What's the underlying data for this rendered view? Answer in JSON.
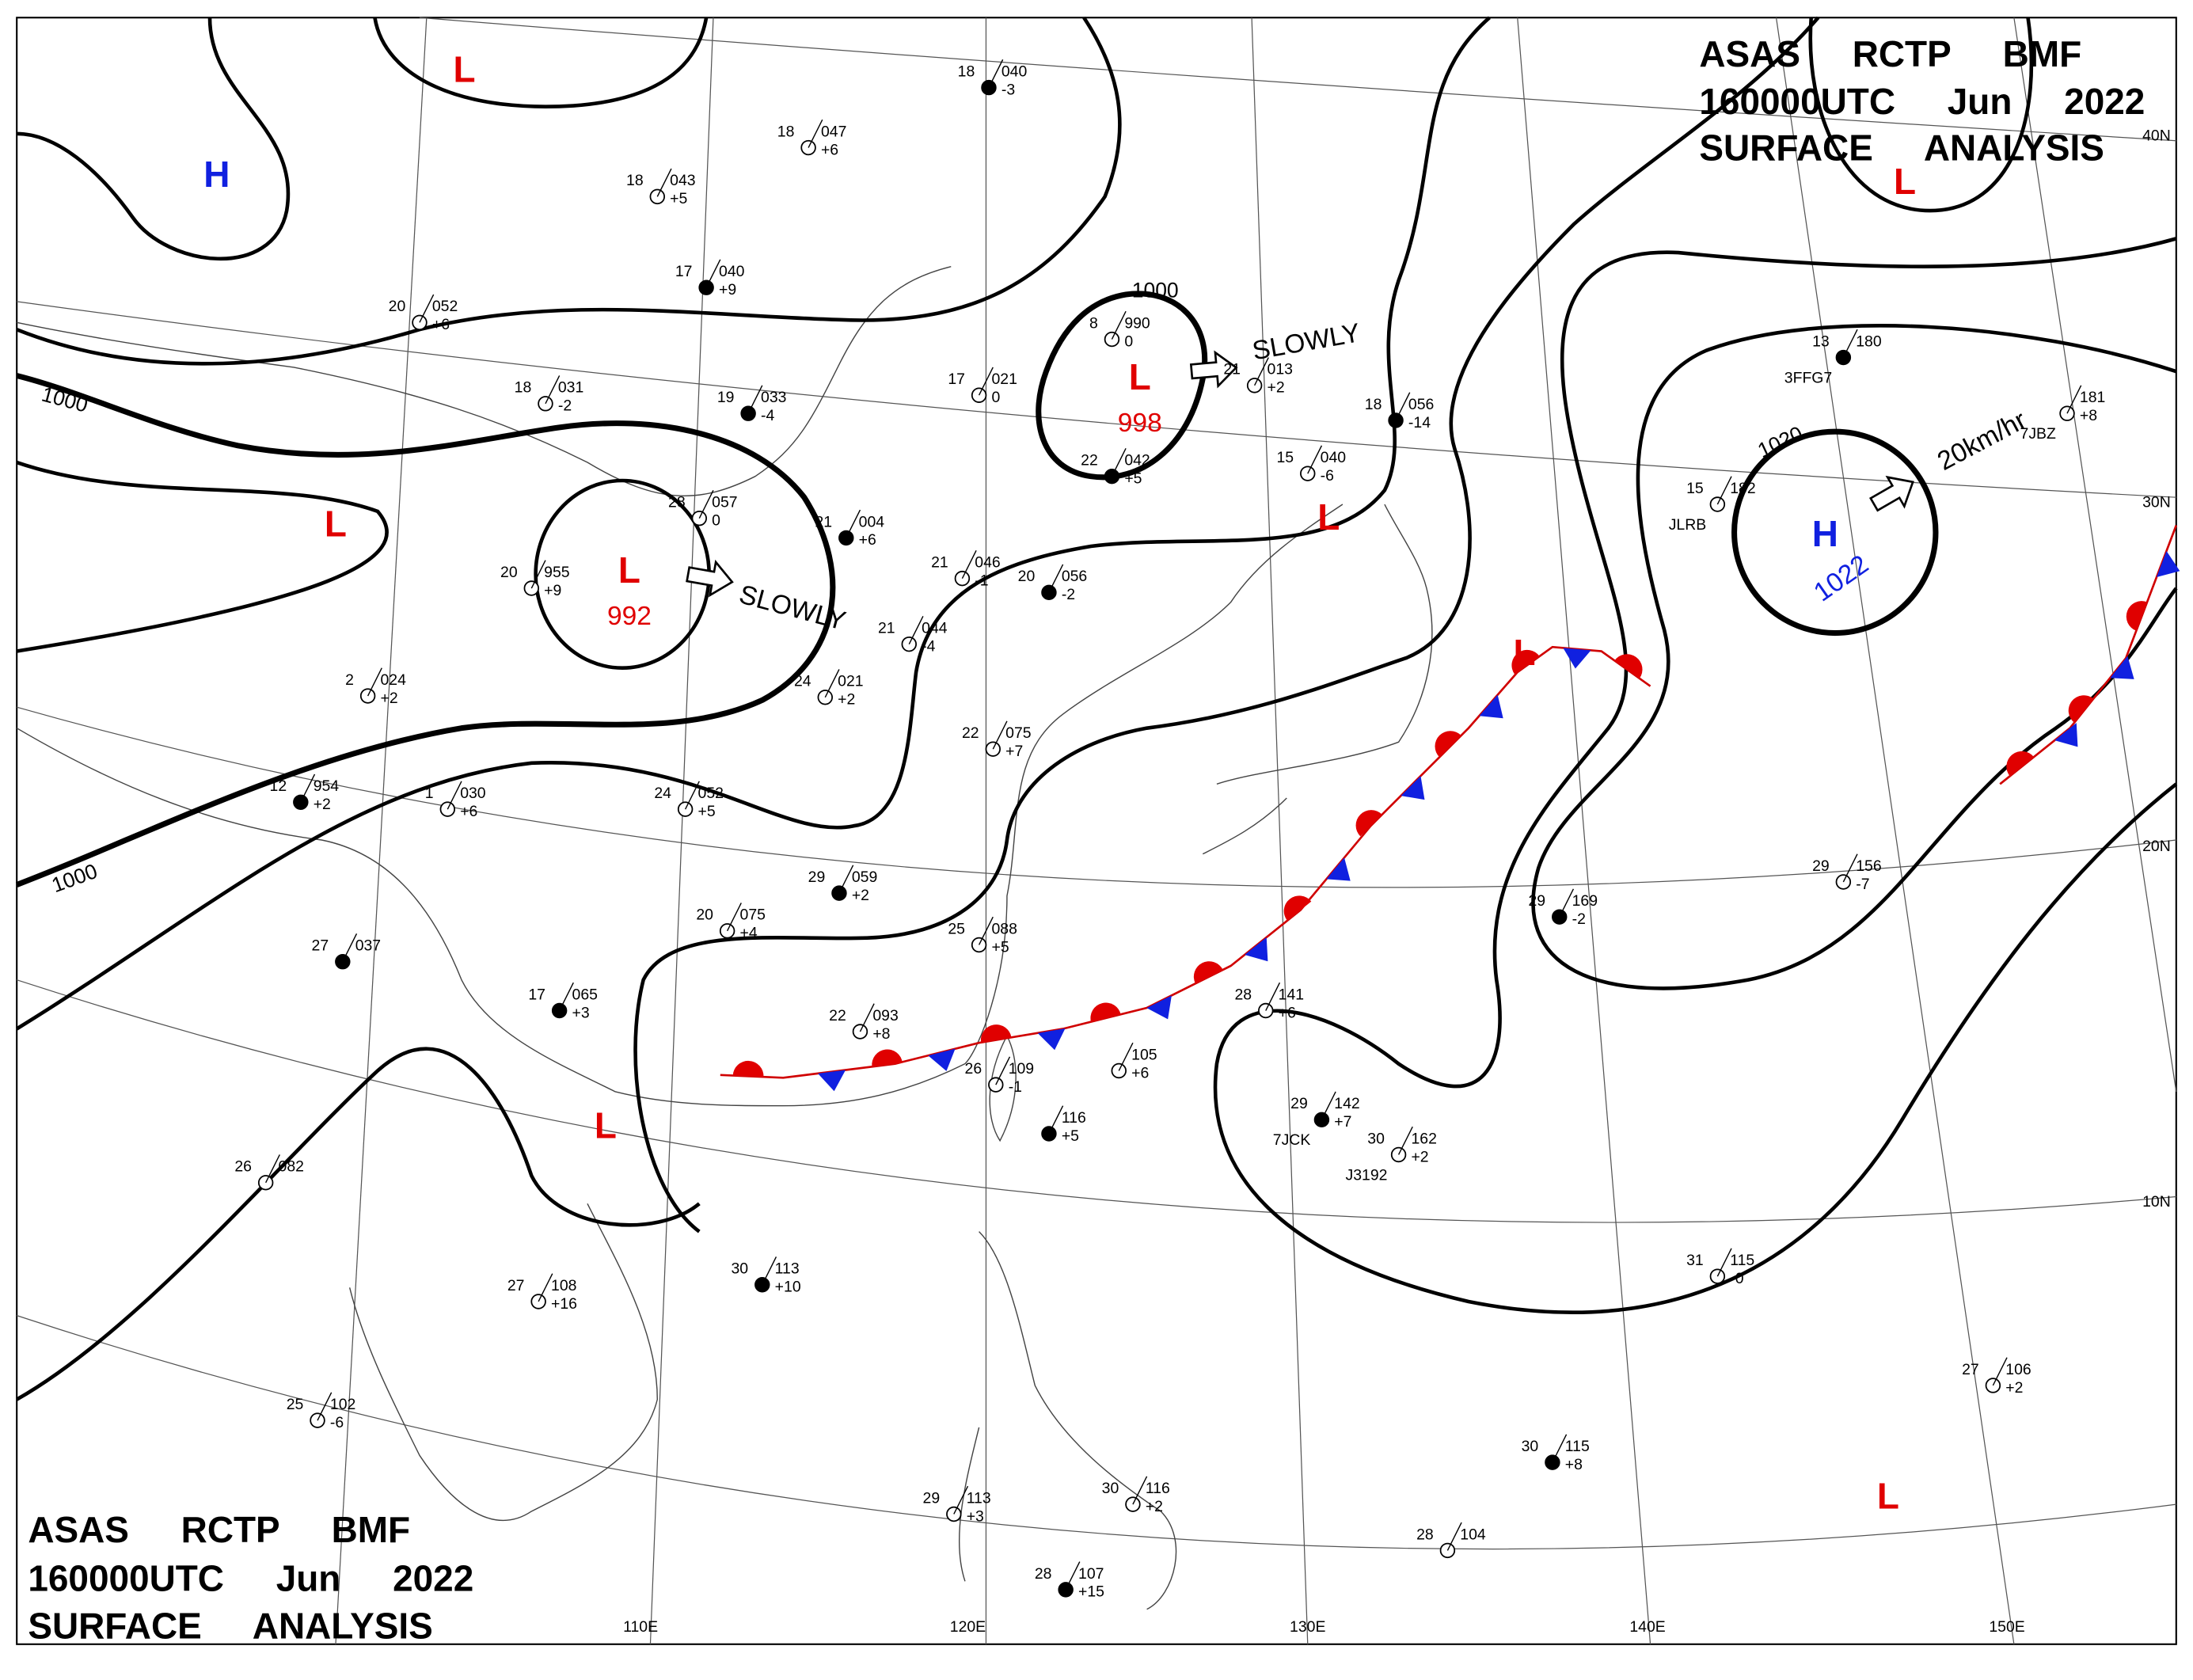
{
  "header": {
    "lines": [
      "ASAS RCTP BMF",
      "160000UTC Jun 2022",
      "SURFACE ANALYSIS"
    ]
  },
  "footer": {
    "lines": [
      "ASAS RCTP BMF",
      "160000UTC Jun 2022",
      "SURFACE ANALYSIS"
    ]
  },
  "systems": [
    {
      "label": "L",
      "color": "#e00000"
    },
    {
      "label": "H",
      "color": "#1020e0"
    },
    {
      "label": "L",
      "color": "#e00000"
    },
    {
      "label": "L",
      "color": "#e00000",
      "pressure": "992"
    },
    {
      "label": "L",
      "color": "#e00000",
      "pressure": "998"
    },
    {
      "label": "L",
      "color": "#e00000"
    },
    {
      "label": "L",
      "color": "#e00000"
    },
    {
      "label": "H",
      "color": "#1020e0",
      "pressure": "1022"
    },
    {
      "label": "L",
      "color": "#e00000"
    },
    {
      "label": "L",
      "color": "#e00000"
    },
    {
      "label": "L",
      "color": "#e00000"
    }
  ],
  "isobar_labels": [
    "1000",
    "1000",
    "1000",
    "1020"
  ],
  "motions": [
    "SLOWLY",
    "SLOWLY",
    "20km/hr"
  ],
  "latitude_labels": [
    "40N",
    "30N",
    "20N",
    "10N"
  ],
  "longitude_labels": [
    "110E",
    "120E",
    "130E",
    "140E",
    "150E"
  ],
  "stations": [
    {
      "temp": "18",
      "pressure": "040",
      "tendency": "-3"
    },
    {
      "temp": "18",
      "pressure": "047",
      "tendency": "+6"
    },
    {
      "temp": "18",
      "pressure": "043",
      "tendency": "+5"
    },
    {
      "temp": "17",
      "pressure": "040",
      "tendency": "+9"
    },
    {
      "temp": "20",
      "pressure": "052",
      "tendency": "+6"
    },
    {
      "temp": "17",
      "pressure": "021",
      "tendency": "0"
    },
    {
      "temp": "19",
      "pressure": "033",
      "tendency": "-4"
    },
    {
      "temp": "18",
      "pressure": "031",
      "tendency": "-2"
    },
    {
      "temp": "8",
      "pressure": "990",
      "tendency": "0"
    },
    {
      "temp": "22",
      "pressure": "042",
      "tendency": "+5"
    },
    {
      "temp": "21",
      "pressure": "013",
      "tendency": "+2"
    },
    {
      "temp": "15",
      "pressure": "040",
      "tendency": "-6"
    },
    {
      "temp": "18",
      "pressure": "056",
      "tendency": "-14"
    },
    {
      "temp": "28",
      "pressure": "057",
      "tendency": "0"
    },
    {
      "temp": "20",
      "pressure": "955",
      "tendency": "+9"
    },
    {
      "temp": "21",
      "pressure": "004",
      "tendency": "+6"
    },
    {
      "temp": "21",
      "pressure": "044",
      "tendency": "-4"
    },
    {
      "temp": "21",
      "pressure": "046",
      "tendency": "-1"
    },
    {
      "temp": "20",
      "pressure": "056",
      "tendency": "-2"
    },
    {
      "temp": "24",
      "pressure": "021",
      "tendency": "+2"
    },
    {
      "temp": "2",
      "pressure": "024",
      "tendency": "+2"
    },
    {
      "temp": "12",
      "pressure": "954",
      "tendency": "+2"
    },
    {
      "temp": "1",
      "pressure": "030",
      "tendency": "+6"
    },
    {
      "temp": "24",
      "pressure": "052",
      "tendency": "+5"
    },
    {
      "temp": "29",
      "pressure": "059",
      "tendency": "+2"
    },
    {
      "temp": "20",
      "pressure": "075",
      "tendency": "+4"
    },
    {
      "temp": "25",
      "pressure": "088",
      "tendency": "+5"
    },
    {
      "temp": "17",
      "pressure": "065",
      "tendency": "+3"
    },
    {
      "temp": "22",
      "pressure": "093",
      "tendency": "+8"
    },
    {
      "temp": "22",
      "pressure": "075",
      "tendency": "+7"
    },
    {
      "temp": "27",
      "pressure": "037"
    },
    {
      "temp": "26",
      "pressure": "082"
    },
    {
      "temp": "27",
      "pressure": "108",
      "tendency": "+16"
    },
    {
      "temp": "30",
      "pressure": "113",
      "tendency": "+10"
    },
    {
      "temp": "25",
      "pressure": "102",
      "tendency": "-6"
    },
    {
      "temp": "26",
      "pressure": "109",
      "tendency": "-1"
    },
    {
      "pressure": "116",
      "tendency": "+5"
    },
    {
      "pressure": "105",
      "tendency": "+6"
    },
    {
      "temp": "28",
      "pressure": "141",
      "tendency": "+6"
    },
    {
      "temp": "29",
      "pressure": "142",
      "tendency": "+7",
      "id": "7JCK"
    },
    {
      "temp": "30",
      "pressure": "162",
      "tendency": "+2",
      "id": "J3192"
    },
    {
      "temp": "31",
      "pressure": "115",
      "tendency": "-0"
    },
    {
      "temp": "30",
      "pressure": "115",
      "tendency": "+8"
    },
    {
      "temp": "28",
      "pressure": "104"
    },
    {
      "temp": "27",
      "pressure": "106",
      "tendency": "+2"
    },
    {
      "temp": "29",
      "pressure": "169",
      "tendency": "-2"
    },
    {
      "temp": "29",
      "pressure": "156",
      "tendency": "-7"
    },
    {
      "temp": "29",
      "pressure": "113",
      "tendency": "+3"
    },
    {
      "temp": "28",
      "pressure": "107",
      "tendency": "+15"
    },
    {
      "temp": "30",
      "pressure": "116",
      "tendency": "+2"
    },
    {
      "temp": "15",
      "pressure": "182",
      "id": "JLRB"
    },
    {
      "temp": "13",
      "pressure": "180",
      "id": "3FFG7"
    },
    {
      "pressure": "181",
      "tendency": "+8",
      "id": "7JBZ"
    }
  ]
}
